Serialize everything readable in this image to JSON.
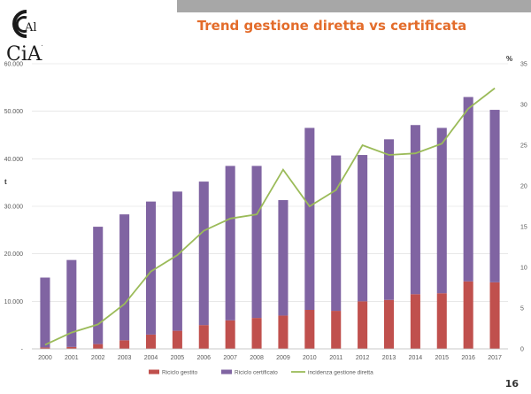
{
  "header": {
    "title": "Trend gestione diretta vs certificata",
    "page_number": "16"
  },
  "logo": {
    "name": "cial-logo",
    "text": "CiAl"
  },
  "colors": {
    "gestito": "#c0504d",
    "certificato": "#8064a2",
    "incidenza": "#9bbb59",
    "title": "#e36c2b"
  },
  "chart_data": {
    "type": "bar",
    "stacked": true,
    "categories": [
      "2000",
      "2001",
      "2002",
      "2003",
      "2004",
      "2005",
      "2006",
      "2007",
      "2008",
      "2009",
      "2010",
      "2011",
      "2012",
      "2013",
      "2014",
      "2015",
      "2016",
      "2017"
    ],
    "series": [
      {
        "name": "Riciclo gestito",
        "type": "bar",
        "axis": "left",
        "color": "#c0504d",
        "values": [
          300,
          400,
          1000,
          1800,
          3000,
          3800,
          5000,
          6000,
          6500,
          7000,
          8200,
          8000,
          10000,
          10300,
          11500,
          11700,
          14200,
          14000
        ]
      },
      {
        "name": "Riciclo certificato",
        "type": "bar",
        "axis": "left",
        "color": "#8064a2",
        "values": [
          14700,
          18300,
          24700,
          26500,
          28000,
          29300,
          30200,
          32500,
          32000,
          24300,
          38300,
          32700,
          30800,
          33800,
          35600,
          34800,
          38800,
          36300
        ]
      },
      {
        "name": "incidenza gestione diretta",
        "type": "line",
        "axis": "right",
        "color": "#9bbb59",
        "values": [
          0.5,
          2.0,
          3.0,
          5.5,
          9.5,
          11.5,
          14.5,
          16.0,
          16.5,
          22.0,
          17.5,
          19.5,
          25.0,
          23.8,
          24.0,
          25.2,
          29.5,
          32.0
        ]
      }
    ],
    "y_left": {
      "label": "t",
      "ylim": [
        0,
        60000
      ],
      "ticks": [
        "-",
        "10.000",
        "20.000",
        "30.000",
        "40.000",
        "50.000",
        "60.000"
      ]
    },
    "y_right": {
      "label": "%",
      "ylim": [
        0,
        35
      ],
      "ticks": [
        "0",
        "5",
        "10",
        "15",
        "20",
        "25",
        "30",
        "35"
      ]
    },
    "grid": true,
    "legend": "bottom"
  }
}
